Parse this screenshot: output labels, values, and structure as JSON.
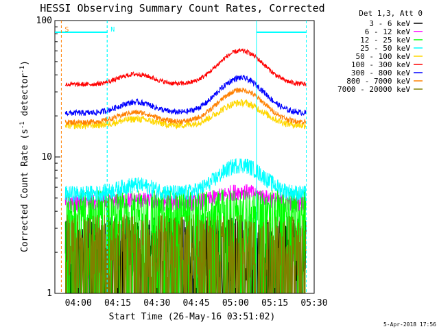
{
  "chart_data": {
    "type": "line",
    "title": "HESSI Observing Summary Count Rates, Corrected",
    "xlabel": "Start Time (26-May-16 03:51:02)",
    "ylabel_main": "Corrected Count Rate (s",
    "ylabel_sup1": "-1",
    "ylabel_mid": " detector",
    "ylabel_sup2": "-1",
    "ylabel_end": ")",
    "yscale": "log",
    "ylim": [
      1,
      100
    ],
    "xlim": [
      "03:51:02",
      "05:30:00"
    ],
    "x_ticks": [
      "04:00",
      "04:15",
      "04:30",
      "04:45",
      "05:00",
      "05:15",
      "05:30"
    ],
    "y_ticks": [
      "1",
      "10",
      "100"
    ],
    "legend_header": "Det 1,3, Att 0",
    "legend_position": "top-right",
    "grid": false,
    "markers": [
      {
        "label": "S",
        "time": "03:53:30",
        "color": "#ff7f00"
      },
      {
        "label": "N",
        "time": "04:11:00",
        "color": "#00ffff"
      }
    ],
    "night_bars": [
      {
        "start": "03:51:02",
        "end": "04:11:00"
      },
      {
        "start": "05:08:00",
        "end": "05:27:00"
      }
    ],
    "series": [
      {
        "name": "3 - 6 keV",
        "color": "#000000",
        "kind": "noisy",
        "base": 1.2,
        "peak": 1.3,
        "spread": 0.55
      },
      {
        "name": "6 - 12 keV",
        "color": "#ff00ff",
        "kind": "smooth",
        "base": 4.6,
        "peak": 5.6,
        "spread": 0.14
      },
      {
        "name": "12 - 25 keV",
        "color": "#00ff00",
        "kind": "noisy",
        "base": 3.3,
        "peak": 3.8,
        "spread": 0.28
      },
      {
        "name": "25 - 50 keV",
        "color": "#00ffff",
        "kind": "smooth",
        "base": 5.4,
        "peak": 8.8,
        "spread": 0.14
      },
      {
        "name": "50 - 100 keV",
        "color": "#ffd700",
        "kind": "smooth",
        "base": 17,
        "peak": 25,
        "spread": 0.06
      },
      {
        "name": "100 - 300 keV",
        "color": "#ff0000",
        "kind": "smooth",
        "base": 34,
        "peak": 60,
        "spread": 0.04
      },
      {
        "name": "300 - 800 keV",
        "color": "#0000ff",
        "kind": "smooth",
        "base": 21,
        "peak": 38,
        "spread": 0.05
      },
      {
        "name": "800 - 7000 keV",
        "color": "#ff8000",
        "kind": "smooth",
        "base": 18,
        "peak": 31,
        "spread": 0.045
      },
      {
        "name": "7000 - 20000 keV",
        "color": "#808000",
        "kind": "noisy",
        "base": 1.3,
        "peak": 1.5,
        "spread": 0.45
      }
    ]
  },
  "footer": {
    "timestamp": "5-Apr-2018 17:56"
  }
}
